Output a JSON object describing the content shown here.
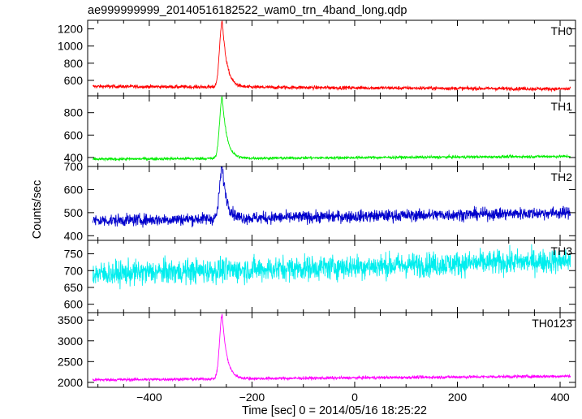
{
  "figure": {
    "title": "ae999999999_20140516182522_wam0_trn_4band_long.qdp",
    "ylabel": "Counts/sec",
    "xlabel": "Time [sec] 0 = 2014/05/16 18:25:22"
  },
  "chart_data": [
    {
      "type": "line",
      "name": "TH0",
      "color": "#ff0000",
      "xlim": [
        -520,
        430
      ],
      "ylim": [
        420,
        1300
      ],
      "y_ticks": [
        600,
        800,
        1000,
        1200
      ],
      "x_ticks": [
        -400,
        -200,
        0,
        200,
        400
      ],
      "baseline_start": 530,
      "baseline_end": 500,
      "noise": 20,
      "peak": {
        "x": -258,
        "y": 1300
      },
      "series": [
        {
          "x_range": [
            -510,
            420
          ],
          "description_values": [
            [
              -510,
              530
            ],
            [
              -300,
              530
            ],
            [
              -270,
              620
            ],
            [
              -258,
              1300
            ],
            [
              -245,
              760
            ],
            [
              -220,
              560
            ],
            [
              0,
              510
            ],
            [
              420,
              500
            ]
          ]
        }
      ]
    },
    {
      "type": "line",
      "name": "TH1",
      "color": "#00ee00",
      "xlim": [
        -520,
        430
      ],
      "ylim": [
        320,
        950
      ],
      "y_ticks": [
        400,
        600,
        800
      ],
      "x_ticks": [
        -400,
        -200,
        0,
        200,
        400
      ],
      "baseline_start": 385,
      "baseline_end": 410,
      "noise": 12,
      "peak": {
        "x": -258,
        "y": 940
      },
      "series": [
        {
          "x_range": [
            -510,
            420
          ],
          "description_values": [
            [
              -510,
              385
            ],
            [
              -300,
              385
            ],
            [
              -270,
              480
            ],
            [
              -258,
              940
            ],
            [
              -245,
              560
            ],
            [
              -220,
              400
            ],
            [
              0,
              395
            ],
            [
              420,
              410
            ]
          ]
        }
      ]
    },
    {
      "type": "line",
      "name": "TH2",
      "color": "#0000cc",
      "xlim": [
        -520,
        430
      ],
      "ylim": [
        380,
        700
      ],
      "y_ticks": [
        400,
        500,
        600,
        700
      ],
      "x_ticks": [
        -400,
        -200,
        0,
        200,
        400
      ],
      "baseline_start": 465,
      "baseline_end": 500,
      "noise": 25,
      "peak": {
        "x": -258,
        "y": 700
      },
      "series": [
        {
          "x_range": [
            -510,
            420
          ],
          "description_values": [
            [
              -510,
              465
            ],
            [
              -300,
              470
            ],
            [
              -270,
              520
            ],
            [
              -258,
              700
            ],
            [
              -245,
              560
            ],
            [
              -220,
              470
            ],
            [
              0,
              480
            ],
            [
              420,
              500
            ]
          ]
        }
      ]
    },
    {
      "type": "line",
      "name": "TH3",
      "color": "#00eeee",
      "xlim": [
        -520,
        430
      ],
      "ylim": [
        575,
        790
      ],
      "y_ticks": [
        600,
        650,
        700,
        750
      ],
      "x_ticks": [
        -400,
        -200,
        0,
        200,
        400
      ],
      "baseline_start": 690,
      "baseline_end": 730,
      "noise": 35,
      "peak": null,
      "series": [
        {
          "x_range": [
            -510,
            420
          ],
          "description_values": [
            [
              -510,
              690
            ],
            [
              -200,
              695
            ],
            [
              0,
              705
            ],
            [
              420,
              730
            ]
          ]
        }
      ]
    },
    {
      "type": "line",
      "name": "TH0123",
      "color": "#ff00ff",
      "xlim": [
        -520,
        430
      ],
      "ylim": [
        1880,
        3680
      ],
      "y_ticks": [
        2000,
        2500,
        3000,
        3500
      ],
      "x_ticks": [
        -400,
        -200,
        0,
        200,
        400
      ],
      "x_tick_labels": [
        "−400",
        "−200",
        "0",
        "200",
        "400"
      ],
      "baseline_start": 2060,
      "baseline_end": 2150,
      "noise": 35,
      "peak": {
        "x": -258,
        "y": 3640
      },
      "series": [
        {
          "x_range": [
            -510,
            420
          ],
          "description_values": [
            [
              -510,
              2060
            ],
            [
              -300,
              2060
            ],
            [
              -270,
              2250
            ],
            [
              -258,
              3640
            ],
            [
              -245,
              2600
            ],
            [
              -220,
              2100
            ],
            [
              0,
              2080
            ],
            [
              420,
              2150
            ]
          ]
        }
      ]
    }
  ]
}
